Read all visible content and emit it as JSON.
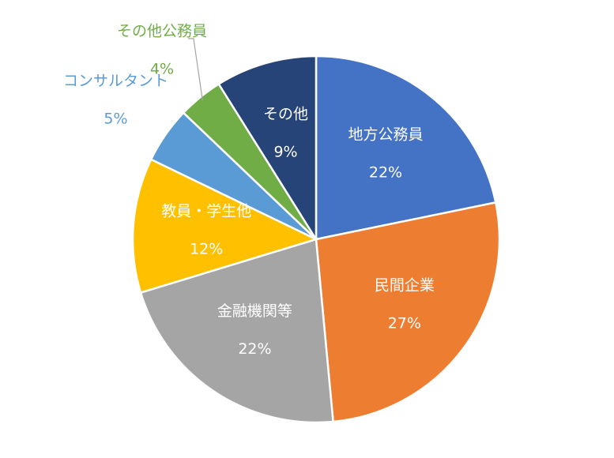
{
  "chart_data": {
    "type": "pie",
    "categories": [
      "地方公務員",
      "民間企業",
      "金融機関等",
      "教員・学生他",
      "コンサルタント",
      "その他公務員",
      "その他"
    ],
    "values": [
      22,
      27,
      22,
      12,
      5,
      4,
      9
    ],
    "value_labels": [
      "22%",
      "27%",
      "22%",
      "12%",
      "5%",
      "4%",
      "9%"
    ],
    "colors": [
      "#4472c4",
      "#ed7d31",
      "#a5a5a5",
      "#ffc000",
      "#5b9bd5",
      "#70ad47",
      "#264478"
    ]
  }
}
